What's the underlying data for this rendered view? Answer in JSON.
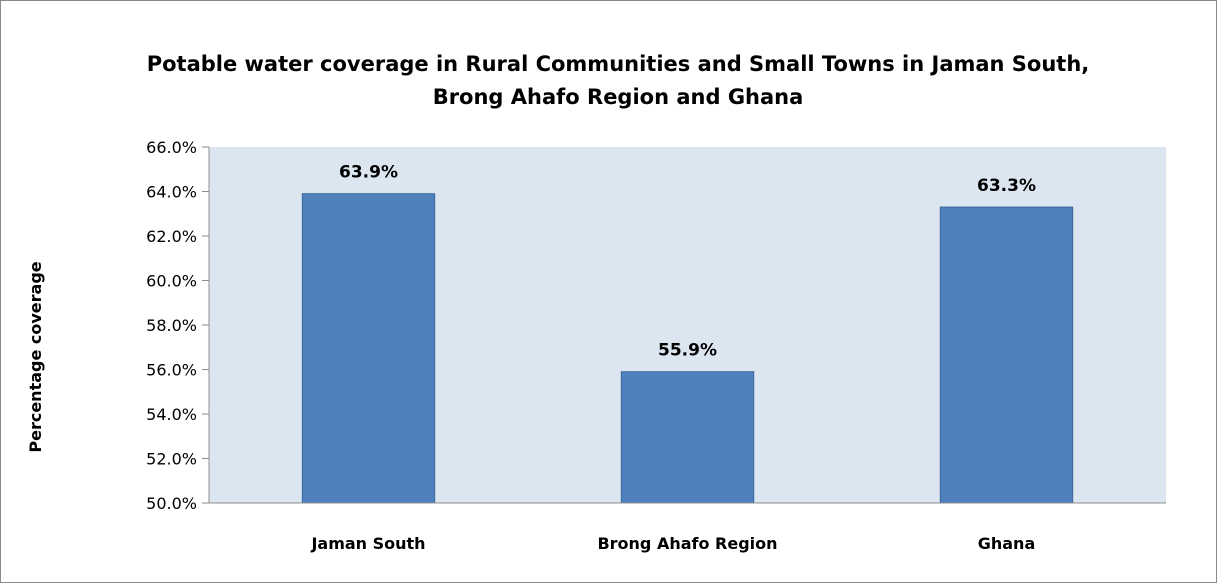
{
  "chart_data": {
    "type": "bar",
    "title_lines": [
      "Potable water coverage in Rural Communities and Small Towns in Jaman South,",
      "Brong Ahafo Region and Ghana"
    ],
    "xlabel": "",
    "ylabel": "Percentage coverage",
    "categories": [
      "Jaman South",
      "Brong Ahafo Region",
      "Ghana"
    ],
    "values": [
      63.9,
      55.9,
      63.3
    ],
    "data_labels": [
      "63.9%",
      "55.9%",
      "63.3%"
    ],
    "ylim": [
      50.0,
      66.0
    ],
    "y_ticks": [
      50.0,
      52.0,
      54.0,
      56.0,
      58.0,
      60.0,
      62.0,
      64.0,
      66.0
    ],
    "y_tick_labels": [
      "50.0%",
      "52.0%",
      "54.0%",
      "56.0%",
      "58.0%",
      "60.0%",
      "62.0%",
      "64.0%",
      "66.0%"
    ],
    "grid": false,
    "legend": "none",
    "colors": {
      "bar_fill": "#4f81bd",
      "bar_stroke": "#3c679a",
      "plot_background": "#dce6f1",
      "axis": "#8c8c8c"
    }
  }
}
